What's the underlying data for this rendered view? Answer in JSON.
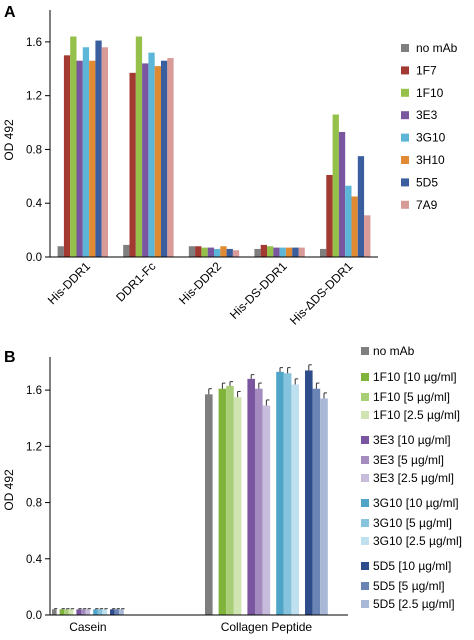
{
  "chart_data": [
    {
      "panel_label": "A",
      "type": "bar",
      "ylabel": "OD 492",
      "ylim": [
        0,
        1.8
      ],
      "yticks": [
        "0.0",
        "0.4",
        "0.8",
        "1.2",
        "1.6"
      ],
      "categories": [
        "His-DDR1",
        "DDR1-Fc",
        "His-DDR2",
        "His-DS-DDR1",
        "His-ΔDS-DDR1"
      ],
      "legend_position": "right",
      "series": [
        {
          "name": "no mAb",
          "color": "#7f7f7f",
          "values": [
            0.08,
            0.09,
            0.08,
            0.06,
            0.06
          ]
        },
        {
          "name": "1F7",
          "color": "#a33a32",
          "values": [
            1.5,
            1.37,
            0.08,
            0.09,
            0.61
          ]
        },
        {
          "name": "1F10",
          "color": "#95c14a",
          "values": [
            1.64,
            1.64,
            0.07,
            0.08,
            1.06
          ]
        },
        {
          "name": "3E3",
          "color": "#7b56a0",
          "values": [
            1.46,
            1.44,
            0.07,
            0.07,
            0.93
          ]
        },
        {
          "name": "3G10",
          "color": "#5cb6d8",
          "values": [
            1.56,
            1.52,
            0.06,
            0.07,
            0.53
          ]
        },
        {
          "name": "3H10",
          "color": "#e08a33",
          "values": [
            1.46,
            1.42,
            0.08,
            0.07,
            0.45
          ]
        },
        {
          "name": "5D5",
          "color": "#3b5f9e",
          "values": [
            1.61,
            1.46,
            0.06,
            0.07,
            0.75
          ]
        },
        {
          "name": "7A9",
          "color": "#d89b98",
          "values": [
            1.56,
            1.48,
            0.05,
            0.07,
            0.31
          ]
        }
      ]
    },
    {
      "panel_label": "B",
      "type": "bar",
      "ylabel": "OD 492",
      "ylim": [
        0,
        1.8
      ],
      "yticks": [
        "0.0",
        "0.4",
        "0.8",
        "1.2",
        "1.6"
      ],
      "categories": [
        "Casein",
        "Collagen Peptide"
      ],
      "error_bars": true,
      "legend_position": "right",
      "series": [
        {
          "name": "no mAb",
          "color": "#7f7f7f",
          "values": [
            0.04,
            1.57
          ],
          "errors": [
            0.005,
            0.04
          ]
        },
        {
          "name": "1F10 [10 µg/ml]",
          "color": "#7fb33c",
          "values": [
            0.04,
            1.61
          ],
          "errors": [
            0.005,
            0.04
          ]
        },
        {
          "name": "1F10 [5 µg/ml]",
          "color": "#a8cf78",
          "values": [
            0.04,
            1.63
          ],
          "errors": [
            0.005,
            0.03
          ]
        },
        {
          "name": "1F10 [2.5 µg/ml]",
          "color": "#cfe4b0",
          "values": [
            0.04,
            1.55
          ],
          "errors": [
            0.005,
            0.04
          ]
        },
        {
          "name": "3E3 [10 µg/ml]",
          "color": "#7b56a0",
          "values": [
            0.04,
            1.68
          ],
          "errors": [
            0.005,
            0.03
          ]
        },
        {
          "name": "3E3 [5 µg/ml]",
          "color": "#a48cc1",
          "values": [
            0.04,
            1.61
          ],
          "errors": [
            0.005,
            0.04
          ]
        },
        {
          "name": "3E3 [2.5 µg/ml]",
          "color": "#c7bcdb",
          "values": [
            0.04,
            1.49
          ],
          "errors": [
            0.005,
            0.04
          ]
        },
        {
          "name": "3G10 [10 µg/ml]",
          "color": "#4ea5c8",
          "values": [
            0.04,
            1.73
          ],
          "errors": [
            0.005,
            0.03
          ]
        },
        {
          "name": "3G10 [5 µg/ml]",
          "color": "#86c3dd",
          "values": [
            0.04,
            1.72
          ],
          "errors": [
            0.005,
            0.04
          ]
        },
        {
          "name": "3G10 [2.5 µg/ml]",
          "color": "#bfe0ee",
          "values": [
            0.04,
            1.64
          ],
          "errors": [
            0.005,
            0.04
          ]
        },
        {
          "name": "5D5 [10 µg/ml]",
          "color": "#2f4d8a",
          "values": [
            0.04,
            1.74
          ],
          "errors": [
            0.005,
            0.04
          ]
        },
        {
          "name": "5D5 [5 µg/ml]",
          "color": "#6a84b6",
          "values": [
            0.04,
            1.61
          ],
          "errors": [
            0.005,
            0.04
          ]
        },
        {
          "name": "5D5 [2.5 µg/ml]",
          "color": "#a9b8d6",
          "values": [
            0.04,
            1.54
          ],
          "errors": [
            0.005,
            0.04
          ]
        }
      ]
    }
  ]
}
